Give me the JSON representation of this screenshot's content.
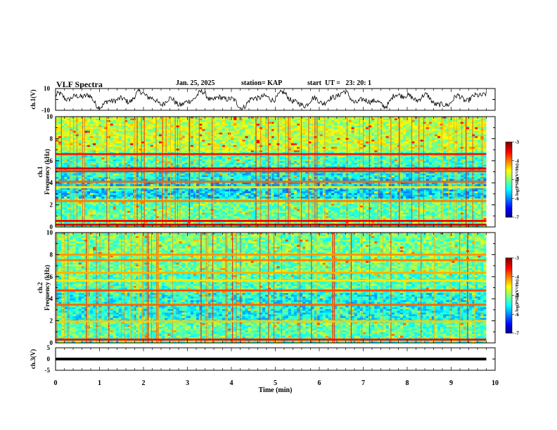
{
  "header": {
    "title": "VLF Spectra",
    "date": "Jan. 25, 2025",
    "station": "station= KAP",
    "start_ut": "start  UT =   23: 20: 1"
  },
  "chart_data": [
    {
      "type": "line",
      "name": "ch1-voltage",
      "ylabel": "ch.1(V)",
      "ylim": [
        -10,
        10
      ],
      "yticks": [
        "10",
        "-10"
      ],
      "x_range_min": [
        0,
        9.8
      ],
      "description_series": "waveform oscillating approx between -8 and 9 V"
    },
    {
      "type": "heatmap",
      "name": "ch1-spectrogram",
      "ylabel_line1": "ch.1",
      "ylabel_line2": "Frequency (kHz)",
      "ylim_khz": [
        0,
        10
      ],
      "yticks": [
        "0",
        "2",
        "4",
        "6",
        "8",
        "10"
      ],
      "x_range_min": [
        0,
        9.8
      ],
      "colorbar": {
        "label": "log(PSD)(V²/Hz)",
        "range": [
          -7,
          -3
        ],
        "ticks": [
          "-3",
          "-4",
          "-5",
          "-6",
          "-7"
        ]
      },
      "bands_khz": [
        {
          "freq": 6.6,
          "level": -3.6
        },
        {
          "freq": 5.3,
          "level": -3.3
        },
        {
          "freq": 5.05,
          "level": -3.7
        },
        {
          "freq": 4.1,
          "level": -3.9
        },
        {
          "freq": 3.6,
          "level": -4.4
        },
        {
          "freq": 2.35,
          "level": -4.0
        },
        {
          "freq": 0.55,
          "level": -3.5
        },
        {
          "freq": 0.2,
          "level": -3.3
        }
      ]
    },
    {
      "type": "heatmap",
      "name": "ch2-spectrogram",
      "ylabel_line1": "ch.2",
      "ylabel_line2": "Frequency (kHz)",
      "ylim_khz": [
        0,
        10
      ],
      "yticks": [
        "0",
        "2",
        "4",
        "6",
        "8",
        "10"
      ],
      "x_range_min": [
        0,
        9.8
      ],
      "colorbar": {
        "label": "log(PSD)(V²/Hz)",
        "range": [
          -7,
          -3
        ],
        "ticks": [
          "-3",
          "-4",
          "-5",
          "-6",
          "-7"
        ]
      },
      "bands_khz": [
        {
          "freq": 8.0,
          "level": -4.1
        },
        {
          "freq": 7.5,
          "level": -4.0
        },
        {
          "freq": 6.35,
          "level": -4.2
        },
        {
          "freq": 5.65,
          "level": -4.4
        },
        {
          "freq": 4.75,
          "level": -3.8
        },
        {
          "freq": 3.45,
          "level": -3.9
        },
        {
          "freq": 1.95,
          "level": -4.3
        },
        {
          "freq": 0.3,
          "level": -3.5
        }
      ]
    },
    {
      "type": "line",
      "name": "ch3-voltage",
      "ylabel": "ch.3(V)",
      "ylim": [
        -5,
        5
      ],
      "yticks": [
        "5",
        "0",
        "-5"
      ],
      "x_range_min": [
        0,
        9.8
      ],
      "level_band": [
        -0.6,
        0.6
      ]
    }
  ],
  "xaxis": {
    "label": "Time (min)",
    "range": [
      0,
      10
    ],
    "ticks": [
      "0",
      "1",
      "2",
      "3",
      "4",
      "5",
      "6",
      "7",
      "8",
      "9",
      "10"
    ]
  }
}
